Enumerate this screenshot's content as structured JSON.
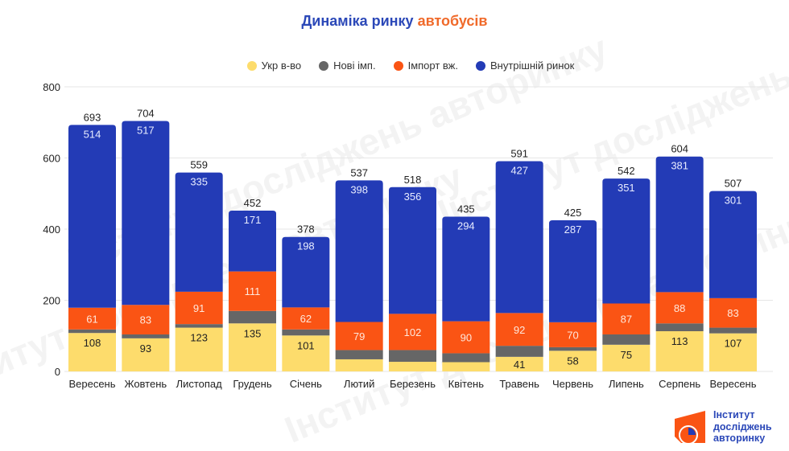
{
  "title": {
    "part1": "Динаміка ринку",
    "part2": "автобусів"
  },
  "colors": {
    "ukr": "#fddc6c",
    "new_imp": "#666666",
    "import_used": "#fa5414",
    "domestic": "#233bb6",
    "title_blue": "#2b48b8",
    "title_orange": "#f06a2a"
  },
  "logo": {
    "line1": "Інститут",
    "line2": "досліджень",
    "line3": "авторинку"
  },
  "watermark": "Інститут досліджень авторинку",
  "chart_data": {
    "type": "bar",
    "stacked": true,
    "title": "Динаміка ринку автобусів",
    "xlabel": "",
    "ylabel": "",
    "ylim": [
      0,
      800
    ],
    "yticks": [
      0,
      200,
      400,
      600,
      800
    ],
    "grid": true,
    "legend_position": "top-center",
    "categories": [
      "Вересень",
      "Жовтень",
      "Листопад",
      "Грудень",
      "Січень",
      "Лютий",
      "Березень",
      "Квітень",
      "Травень",
      "Червень",
      "Липень",
      "Серпень",
      "Вересень"
    ],
    "series": [
      {
        "name": "Укр в-во",
        "key": "ukr",
        "values": [
          108,
          93,
          123,
          135,
          101,
          34,
          27,
          26,
          41,
          58,
          75,
          113,
          107
        ],
        "labels": [
          "108",
          "93",
          "123",
          "135",
          "101",
          "",
          "",
          "",
          "41",
          "58",
          "75",
          "113",
          "107"
        ]
      },
      {
        "name": "Нові імп.",
        "key": "new_imp",
        "values": [
          10,
          11,
          10,
          35,
          17,
          26,
          33,
          25,
          31,
          10,
          29,
          22,
          16
        ],
        "labels": [
          "",
          "",
          "",
          "",
          "",
          "",
          "",
          "",
          "",
          "",
          "",
          "",
          ""
        ]
      },
      {
        "name": "Імпорт вж.",
        "key": "import_used",
        "values": [
          61,
          83,
          91,
          111,
          62,
          79,
          102,
          90,
          92,
          70,
          87,
          88,
          83
        ],
        "labels": [
          "61",
          "83",
          "91",
          "111",
          "62",
          "79",
          "102",
          "90",
          "92",
          "70",
          "87",
          "88",
          "83"
        ]
      },
      {
        "name": "Внутрішній ринок",
        "key": "domestic",
        "values": [
          514,
          517,
          335,
          171,
          198,
          398,
          356,
          294,
          427,
          287,
          351,
          381,
          301
        ],
        "labels": [
          "514",
          "517",
          "335",
          "171",
          "198",
          "398",
          "356",
          "294",
          "427",
          "287",
          "351",
          "381",
          "301"
        ]
      }
    ],
    "totals": [
      693,
      704,
      559,
      452,
      378,
      537,
      518,
      435,
      591,
      425,
      542,
      604,
      507
    ]
  }
}
